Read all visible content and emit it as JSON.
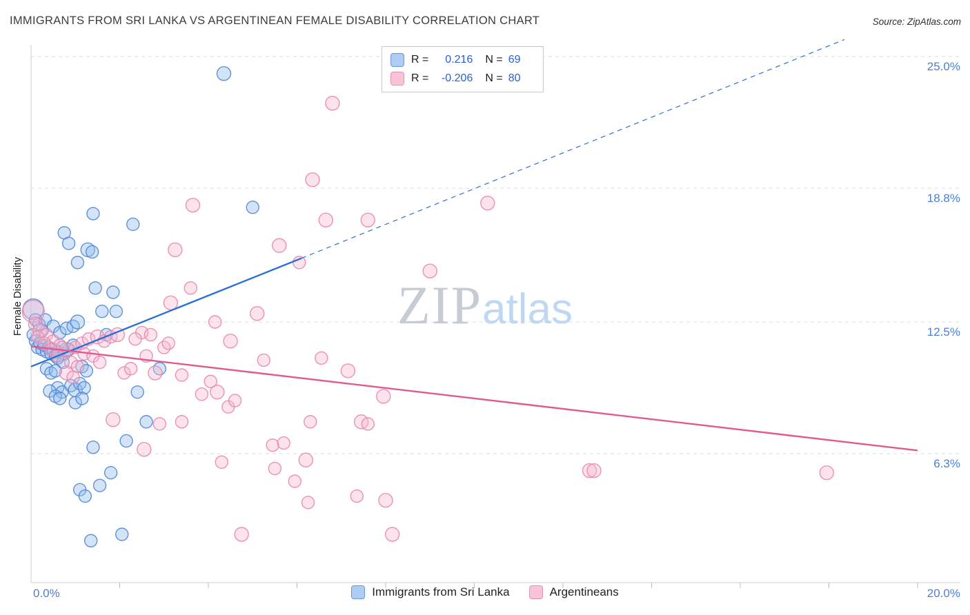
{
  "header": {
    "title": "IMMIGRANTS FROM SRI LANKA VS ARGENTINEAN FEMALE DISABILITY CORRELATION CHART",
    "source": "Source: ZipAtlas.com"
  },
  "watermark": {
    "zip": "ZIP",
    "atlas": "atlas"
  },
  "legend_box": {
    "rows": [
      {
        "r_label": "R =",
        "r_value": "0.216",
        "n_label": "N =",
        "n_value": "69",
        "fill": "#aecdf4",
        "border": "#6a96d8"
      },
      {
        "r_label": "R =",
        "r_value": "-0.206",
        "n_label": "N =",
        "n_value": "80",
        "fill": "#f9c4d7",
        "border": "#ea8fb2"
      }
    ]
  },
  "axes": {
    "y_axis_label": "Female Disability",
    "x_min_label": "0.0%",
    "x_max_label": "20.0%"
  },
  "bottom_legend": [
    {
      "label": "Immigrants from Sri Lanka",
      "fill": "#aecdf4",
      "border": "#6a96d8"
    },
    {
      "label": "Argentineans",
      "fill": "#f9c4d7",
      "border": "#ea8fb2"
    }
  ],
  "chart_data": {
    "type": "scatter",
    "title": "Immigrants from Sri Lanka vs Argentinean Female Disability",
    "xlabel": "",
    "ylabel": "Female Disability",
    "x_range": [
      0,
      20
    ],
    "y_range": [
      0,
      26
    ],
    "grid": "horizontal-dashed",
    "legend_position": "bottom",
    "x_ticks": [
      2,
      4,
      6,
      8,
      10,
      12,
      14,
      16,
      18,
      20
    ],
    "y_ticks": [
      {
        "value": 25.0,
        "label": "25.0%"
      },
      {
        "value": 18.8,
        "label": "18.8%"
      },
      {
        "value": 12.5,
        "label": "12.5%"
      },
      {
        "value": 6.3,
        "label": "6.3%"
      }
    ],
    "series": [
      {
        "name": "Immigrants from Sri Lanka",
        "r": 0.216,
        "n": 69,
        "fill": "#90bbee",
        "stroke": "#4f86d4",
        "points": [
          [
            4.35,
            24.2,
            10
          ],
          [
            5.0,
            17.9,
            9
          ],
          [
            1.4,
            17.6,
            9
          ],
          [
            2.3,
            17.1,
            9
          ],
          [
            0.75,
            16.7,
            9
          ],
          [
            0.85,
            16.2,
            9
          ],
          [
            1.28,
            15.9,
            10
          ],
          [
            1.38,
            15.8,
            9
          ],
          [
            1.05,
            15.3,
            9
          ],
          [
            1.45,
            14.1,
            9
          ],
          [
            1.85,
            13.9,
            9
          ],
          [
            1.6,
            13.0,
            9
          ],
          [
            1.92,
            13.0,
            9
          ],
          [
            0.05,
            13.1,
            15
          ],
          [
            0.1,
            12.6,
            9
          ],
          [
            0.18,
            12.4,
            9
          ],
          [
            0.25,
            12.1,
            9
          ],
          [
            0.32,
            12.6,
            9
          ],
          [
            0.5,
            12.3,
            9
          ],
          [
            0.65,
            12.0,
            9
          ],
          [
            0.8,
            12.2,
            9
          ],
          [
            0.95,
            12.3,
            9
          ],
          [
            1.05,
            12.5,
            10
          ],
          [
            1.7,
            11.9,
            9
          ],
          [
            0.05,
            11.9,
            9
          ],
          [
            0.1,
            11.6,
            9
          ],
          [
            0.15,
            11.3,
            9
          ],
          [
            0.2,
            11.5,
            9
          ],
          [
            0.25,
            11.2,
            9
          ],
          [
            0.3,
            11.4,
            9
          ],
          [
            0.35,
            11.1,
            9
          ],
          [
            0.4,
            11.3,
            9
          ],
          [
            0.45,
            11.0,
            9
          ],
          [
            0.5,
            11.2,
            9
          ],
          [
            0.55,
            10.9,
            9
          ],
          [
            0.6,
            11.1,
            9
          ],
          [
            0.7,
            11.3,
            9
          ],
          [
            0.75,
            11.0,
            9
          ],
          [
            0.85,
            11.2,
            9
          ],
          [
            0.95,
            11.4,
            9
          ],
          [
            0.6,
            10.8,
            9
          ],
          [
            0.72,
            10.6,
            9
          ],
          [
            0.35,
            10.3,
            9
          ],
          [
            0.45,
            10.1,
            9
          ],
          [
            0.55,
            10.2,
            9
          ],
          [
            1.15,
            10.4,
            9
          ],
          [
            1.25,
            10.2,
            9
          ],
          [
            2.9,
            10.3,
            9
          ],
          [
            0.6,
            9.4,
            9
          ],
          [
            0.7,
            9.2,
            9
          ],
          [
            0.42,
            9.25,
            9
          ],
          [
            0.9,
            9.5,
            9
          ],
          [
            1.0,
            9.3,
            10
          ],
          [
            1.1,
            9.6,
            9
          ],
          [
            1.2,
            9.4,
            9
          ],
          [
            0.55,
            9.0,
            9
          ],
          [
            0.65,
            8.9,
            9
          ],
          [
            1.0,
            8.7,
            9
          ],
          [
            1.15,
            8.9,
            9
          ],
          [
            2.4,
            9.2,
            9
          ],
          [
            2.6,
            7.8,
            9
          ],
          [
            1.4,
            6.6,
            9
          ],
          [
            2.15,
            6.9,
            9
          ],
          [
            1.8,
            5.4,
            9
          ],
          [
            1.55,
            4.8,
            9
          ],
          [
            1.1,
            4.6,
            9
          ],
          [
            1.22,
            4.3,
            9
          ],
          [
            1.35,
            2.2,
            9
          ],
          [
            2.05,
            2.5,
            9
          ]
        ]
      },
      {
        "name": "Argentineans",
        "r": -0.206,
        "n": 80,
        "fill": "#f8b8cf",
        "stroke": "#e886ad",
        "points": [
          [
            6.8,
            22.8,
            10
          ],
          [
            6.35,
            19.2,
            10
          ],
          [
            10.3,
            18.1,
            10
          ],
          [
            3.65,
            18.0,
            10
          ],
          [
            6.65,
            17.3,
            10
          ],
          [
            7.6,
            17.3,
            10
          ],
          [
            5.6,
            16.1,
            10
          ],
          [
            3.25,
            15.9,
            10
          ],
          [
            6.05,
            15.3,
            9
          ],
          [
            9.0,
            14.9,
            10
          ],
          [
            3.6,
            14.1,
            9
          ],
          [
            3.15,
            13.4,
            10
          ],
          [
            5.1,
            12.9,
            10
          ],
          [
            4.15,
            12.5,
            9
          ],
          [
            4.5,
            11.6,
            10
          ],
          [
            0.05,
            13.0,
            16
          ],
          [
            0.1,
            12.4,
            10
          ],
          [
            0.2,
            12.1,
            10
          ],
          [
            0.35,
            11.9,
            9
          ],
          [
            0.5,
            11.6,
            9
          ],
          [
            0.65,
            11.4,
            9
          ],
          [
            0.8,
            11.2,
            10
          ],
          [
            1.0,
            11.3,
            9
          ],
          [
            1.15,
            11.5,
            9
          ],
          [
            1.3,
            11.7,
            9
          ],
          [
            1.5,
            11.8,
            10
          ],
          [
            1.65,
            11.6,
            9
          ],
          [
            1.8,
            11.8,
            9
          ],
          [
            1.95,
            11.9,
            10
          ],
          [
            1.2,
            11.0,
            9
          ],
          [
            1.4,
            10.9,
            9
          ],
          [
            0.9,
            10.6,
            9
          ],
          [
            1.05,
            10.4,
            9
          ],
          [
            0.8,
            10.1,
            10
          ],
          [
            2.5,
            12.0,
            9
          ],
          [
            2.7,
            11.9,
            9
          ],
          [
            3.0,
            11.3,
            9
          ],
          [
            3.1,
            11.5,
            9
          ],
          [
            2.8,
            10.1,
            10
          ],
          [
            3.4,
            10.0,
            9
          ],
          [
            2.1,
            10.1,
            9
          ],
          [
            2.25,
            10.3,
            9
          ],
          [
            6.55,
            10.8,
            9
          ],
          [
            7.15,
            10.2,
            10
          ],
          [
            5.25,
            10.7,
            9
          ],
          [
            4.2,
            9.2,
            10
          ],
          [
            3.85,
            9.1,
            9
          ],
          [
            4.05,
            9.7,
            9
          ],
          [
            4.45,
            8.5,
            9
          ],
          [
            4.6,
            8.8,
            9
          ],
          [
            7.95,
            9.0,
            10
          ],
          [
            1.85,
            7.9,
            10
          ],
          [
            3.4,
            7.8,
            9
          ],
          [
            2.9,
            7.7,
            9
          ],
          [
            6.3,
            7.8,
            9
          ],
          [
            7.45,
            7.8,
            10
          ],
          [
            7.6,
            7.7,
            9
          ],
          [
            2.55,
            6.5,
            10
          ],
          [
            5.45,
            6.7,
            9
          ],
          [
            5.7,
            6.8,
            9
          ],
          [
            4.3,
            5.9,
            9
          ],
          [
            6.2,
            6.0,
            10
          ],
          [
            5.5,
            5.6,
            9
          ],
          [
            12.6,
            5.5,
            10
          ],
          [
            12.7,
            5.5,
            10
          ],
          [
            17.95,
            5.4,
            10
          ],
          [
            5.95,
            5.0,
            9
          ],
          [
            7.35,
            4.3,
            9
          ],
          [
            8.0,
            4.1,
            10
          ],
          [
            6.25,
            4.0,
            9
          ],
          [
            4.75,
            2.5,
            10
          ],
          [
            8.15,
            2.5,
            10
          ],
          [
            0.15,
            11.8,
            9
          ],
          [
            0.3,
            11.5,
            9
          ],
          [
            0.45,
            11.2,
            9
          ],
          [
            0.6,
            10.9,
            9
          ],
          [
            2.35,
            11.7,
            9
          ],
          [
            2.6,
            10.9,
            9
          ],
          [
            0.95,
            9.9,
            9
          ],
          [
            1.55,
            10.6,
            9
          ]
        ]
      }
    ],
    "trend_lines": [
      {
        "series": "Immigrants from Sri Lanka",
        "color": "#2a6fd4",
        "solid": [
          [
            0,
            10.4
          ],
          [
            6.1,
            15.5
          ]
        ],
        "dashed": [
          [
            6.1,
            15.5
          ],
          [
            18.35,
            25.8
          ]
        ]
      },
      {
        "series": "Argentineans",
        "color": "#e0598f",
        "solid": [
          [
            0,
            11.35
          ],
          [
            20,
            6.45
          ]
        ],
        "dashed": null
      }
    ]
  }
}
